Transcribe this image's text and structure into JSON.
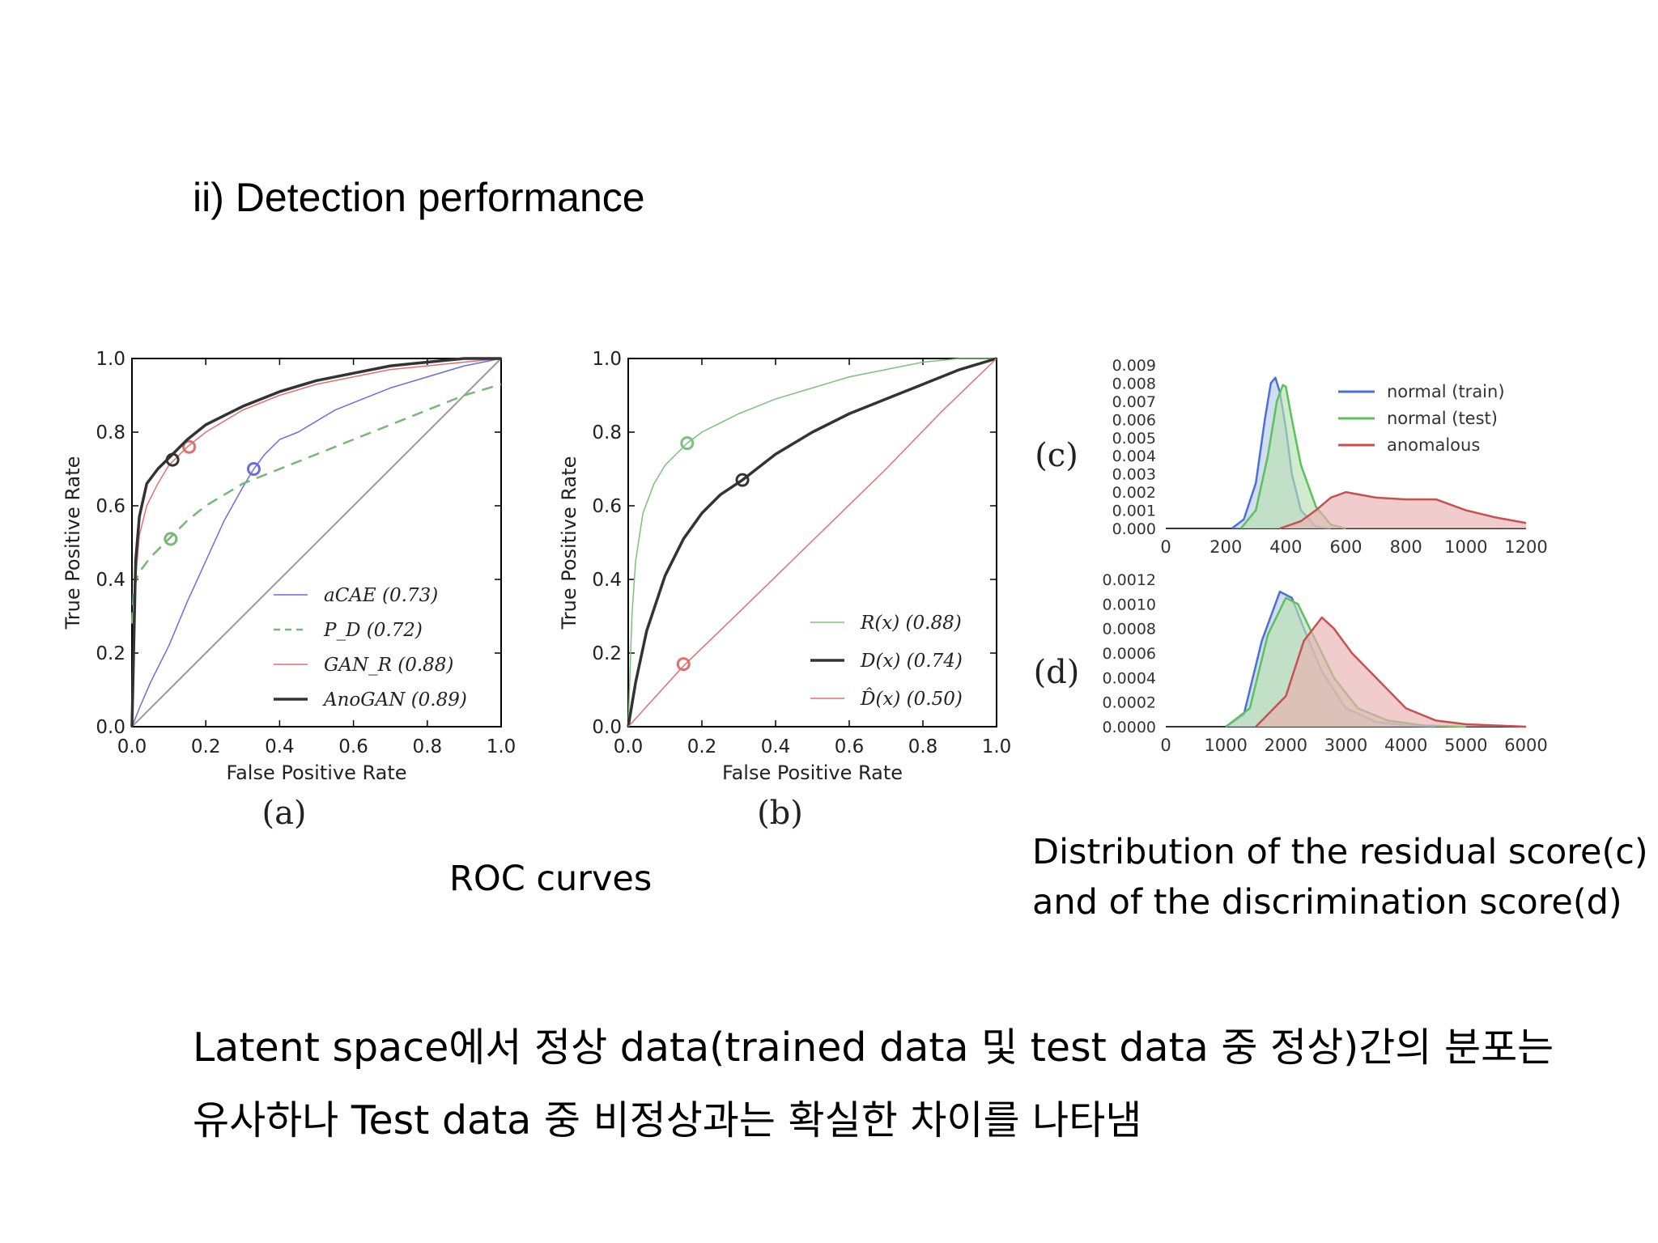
{
  "slide": {
    "heading": "ii) Detection performance",
    "caption_roc": "ROC curves",
    "caption_dist_line1": "Distribution of the residual score(c)",
    "caption_dist_line2": "and of the discrimination score(d)",
    "body_line1": "Latent space에서 정상 data(trained data 및 test data 중 정상)간의 분포는",
    "body_line2": "유사하나 Test data 중 비정상과는 확실한 차이를 나타냄"
  },
  "chart_data": [
    {
      "id": "a",
      "type": "line",
      "panel_label": "(a)",
      "xlabel": "False Positive Rate",
      "ylabel": "True Positive Rate",
      "xlim": [
        0,
        1
      ],
      "ylim": [
        0,
        1
      ],
      "xticks": [
        "0.0",
        "0.2",
        "0.4",
        "0.6",
        "0.8",
        "1.0"
      ],
      "yticks": [
        "0.0",
        "0.2",
        "0.4",
        "0.6",
        "0.8",
        "1.0"
      ],
      "legend_position": "lower-right",
      "diagonal": true,
      "series": [
        {
          "name": "aCAE (0.73)",
          "color": "#6b6be6",
          "dash": "solid",
          "width": 1.5,
          "x": [
            0,
            0.02,
            0.05,
            0.1,
            0.15,
            0.2,
            0.25,
            0.3,
            0.33,
            0.36,
            0.4,
            0.45,
            0.5,
            0.55,
            0.6,
            0.7,
            0.8,
            0.9,
            1.0
          ],
          "y": [
            0,
            0.05,
            0.12,
            0.22,
            0.34,
            0.45,
            0.56,
            0.65,
            0.7,
            0.74,
            0.78,
            0.8,
            0.83,
            0.86,
            0.88,
            0.92,
            0.95,
            0.98,
            1.0
          ],
          "marker": {
            "x": 0.33,
            "y": 0.7
          }
        },
        {
          "name": "P_D (0.72)",
          "color": "#77b877",
          "dash": "dashed",
          "width": 2.5,
          "x": [
            0,
            0.005,
            0.02,
            0.05,
            0.08,
            0.1,
            0.15,
            0.2,
            0.3,
            0.4,
            0.5,
            0.6,
            0.7,
            0.8,
            0.9,
            1.0
          ],
          "y": [
            0.28,
            0.38,
            0.42,
            0.46,
            0.49,
            0.51,
            0.56,
            0.6,
            0.66,
            0.7,
            0.74,
            0.78,
            0.82,
            0.86,
            0.9,
            0.93
          ],
          "marker": {
            "x": 0.105,
            "y": 0.51
          }
        },
        {
          "name": "GAN_R (0.88)",
          "color": "#e07070",
          "dash": "solid",
          "width": 1.5,
          "x": [
            0,
            0.01,
            0.02,
            0.04,
            0.07,
            0.1,
            0.15,
            0.2,
            0.3,
            0.4,
            0.5,
            0.6,
            0.7,
            0.8,
            0.9,
            1.0
          ],
          "y": [
            0,
            0.4,
            0.52,
            0.6,
            0.66,
            0.71,
            0.76,
            0.8,
            0.86,
            0.9,
            0.93,
            0.95,
            0.97,
            0.98,
            0.99,
            1.0
          ],
          "marker": {
            "x": 0.155,
            "y": 0.76
          }
        },
        {
          "name": "AnoGAN (0.89)",
          "color": "#333333",
          "dash": "solid",
          "width": 3.5,
          "x": [
            0,
            0.01,
            0.02,
            0.04,
            0.07,
            0.1,
            0.15,
            0.2,
            0.3,
            0.4,
            0.5,
            0.6,
            0.7,
            0.8,
            0.9,
            1.0
          ],
          "y": [
            0,
            0.45,
            0.57,
            0.66,
            0.7,
            0.73,
            0.78,
            0.82,
            0.87,
            0.91,
            0.94,
            0.96,
            0.98,
            0.99,
            1.0,
            1.0
          ],
          "marker": {
            "x": 0.11,
            "y": 0.725
          }
        }
      ]
    },
    {
      "id": "b",
      "type": "line",
      "panel_label": "(b)",
      "xlabel": "False Positive Rate",
      "ylabel": "True Positive Rate",
      "xlim": [
        0,
        1
      ],
      "ylim": [
        0,
        1
      ],
      "xticks": [
        "0.0",
        "0.2",
        "0.4",
        "0.6",
        "0.8",
        "1.0"
      ],
      "yticks": [
        "0.0",
        "0.2",
        "0.4",
        "0.6",
        "0.8",
        "1.0"
      ],
      "legend_position": "lower-right",
      "diagonal": false,
      "series": [
        {
          "name": "R(x) (0.88)",
          "color": "#7cc07c",
          "dash": "solid",
          "width": 1.5,
          "x": [
            0,
            0.01,
            0.02,
            0.04,
            0.07,
            0.1,
            0.16,
            0.2,
            0.3,
            0.4,
            0.5,
            0.6,
            0.7,
            0.8,
            0.9,
            1.0
          ],
          "y": [
            0,
            0.3,
            0.45,
            0.58,
            0.66,
            0.71,
            0.77,
            0.8,
            0.85,
            0.89,
            0.92,
            0.95,
            0.97,
            0.99,
            1.0,
            1.0
          ],
          "marker": {
            "x": 0.16,
            "y": 0.77
          }
        },
        {
          "name": "D(x) (0.74)",
          "color": "#333333",
          "dash": "solid",
          "width": 3.5,
          "x": [
            0,
            0.02,
            0.05,
            0.1,
            0.15,
            0.2,
            0.25,
            0.31,
            0.4,
            0.5,
            0.6,
            0.7,
            0.8,
            0.9,
            1.0
          ],
          "y": [
            0,
            0.12,
            0.26,
            0.41,
            0.51,
            0.58,
            0.63,
            0.67,
            0.74,
            0.8,
            0.85,
            0.89,
            0.93,
            0.97,
            1.0
          ],
          "marker": {
            "x": 0.31,
            "y": 0.67
          }
        },
        {
          "name": "D̂(x) (0.50)",
          "color": "#e07070",
          "dash": "solid",
          "width": 1.5,
          "x": [
            0,
            0.15,
            0.3,
            0.5,
            0.7,
            0.85,
            1.0
          ],
          "y": [
            0,
            0.165,
            0.31,
            0.505,
            0.7,
            0.855,
            1.0
          ],
          "marker": {
            "x": 0.15,
            "y": 0.17
          }
        }
      ]
    },
    {
      "id": "c",
      "type": "area",
      "panel_label": "(c)",
      "xlim": [
        0,
        1200
      ],
      "ylim": [
        0,
        0.009
      ],
      "xticks": [
        "0",
        "200",
        "400",
        "600",
        "800",
        "1000",
        "1200"
      ],
      "yticks": [
        "0.000",
        "0.001",
        "0.002",
        "0.003",
        "0.004",
        "0.005",
        "0.006",
        "0.007",
        "0.008",
        "0.009"
      ],
      "legend_position": "upper-right",
      "series": [
        {
          "name": "normal (train)",
          "color": "#4a6fd8",
          "fill": "#b9cbea",
          "x": [
            220,
            260,
            300,
            330,
            350,
            365,
            380,
            400,
            420,
            450,
            500,
            550
          ],
          "y": [
            0,
            0.0005,
            0.0025,
            0.006,
            0.008,
            0.0083,
            0.0075,
            0.0055,
            0.003,
            0.001,
            0.0001,
            0
          ]
        },
        {
          "name": "normal (test)",
          "color": "#5cc05c",
          "fill": "#b9e2b0",
          "x": [
            250,
            300,
            340,
            370,
            390,
            400,
            420,
            450,
            500,
            550,
            600
          ],
          "y": [
            0,
            0.001,
            0.004,
            0.007,
            0.0079,
            0.0078,
            0.006,
            0.0035,
            0.0012,
            0.0002,
            0
          ]
        },
        {
          "name": "anomalous",
          "color": "#c85050",
          "fill": "#eab0b0",
          "x": [
            380,
            450,
            500,
            550,
            600,
            700,
            800,
            900,
            950,
            1000,
            1100,
            1200
          ],
          "y": [
            0,
            0.0004,
            0.001,
            0.0017,
            0.002,
            0.0017,
            0.0016,
            0.0016,
            0.0013,
            0.001,
            0.0006,
            0.0003
          ]
        }
      ]
    },
    {
      "id": "d",
      "type": "area",
      "panel_label": "(d)",
      "xlim": [
        0,
        6000
      ],
      "ylim": [
        0,
        0.0012
      ],
      "xticks": [
        "0",
        "1000",
        "2000",
        "3000",
        "4000",
        "5000",
        "6000"
      ],
      "yticks": [
        "0.0000",
        "0.0002",
        "0.0004",
        "0.0006",
        "0.0008",
        "0.0010",
        "0.0012"
      ],
      "series": [
        {
          "name": "normal (train)",
          "color": "#4a6fd8",
          "fill": "#b9cbea",
          "x": [
            1000,
            1300,
            1600,
            1900,
            2100,
            2300,
            2600,
            3000,
            3500,
            4000,
            4500
          ],
          "y": [
            0,
            0.0001,
            0.0007,
            0.0011,
            0.00105,
            0.0008,
            0.00045,
            0.00015,
            4e-05,
            1e-05,
            0
          ]
        },
        {
          "name": "normal (test)",
          "color": "#5cc05c",
          "fill": "#b9e2b0",
          "x": [
            1000,
            1400,
            1700,
            2000,
            2200,
            2500,
            2800,
            3200,
            3700,
            4300,
            5000
          ],
          "y": [
            0,
            0.00015,
            0.00075,
            0.00105,
            0.001,
            0.0007,
            0.0004,
            0.00015,
            5e-05,
            1e-05,
            0
          ]
        },
        {
          "name": "anomalous",
          "color": "#c85050",
          "fill": "#eab0b0",
          "x": [
            1500,
            2000,
            2300,
            2600,
            2800,
            3100,
            3400,
            3700,
            4000,
            4500,
            5000,
            6000
          ],
          "y": [
            0,
            0.00025,
            0.0007,
            0.00089,
            0.0008,
            0.0006,
            0.00045,
            0.0003,
            0.00015,
            5e-05,
            2e-05,
            0
          ]
        }
      ]
    }
  ]
}
